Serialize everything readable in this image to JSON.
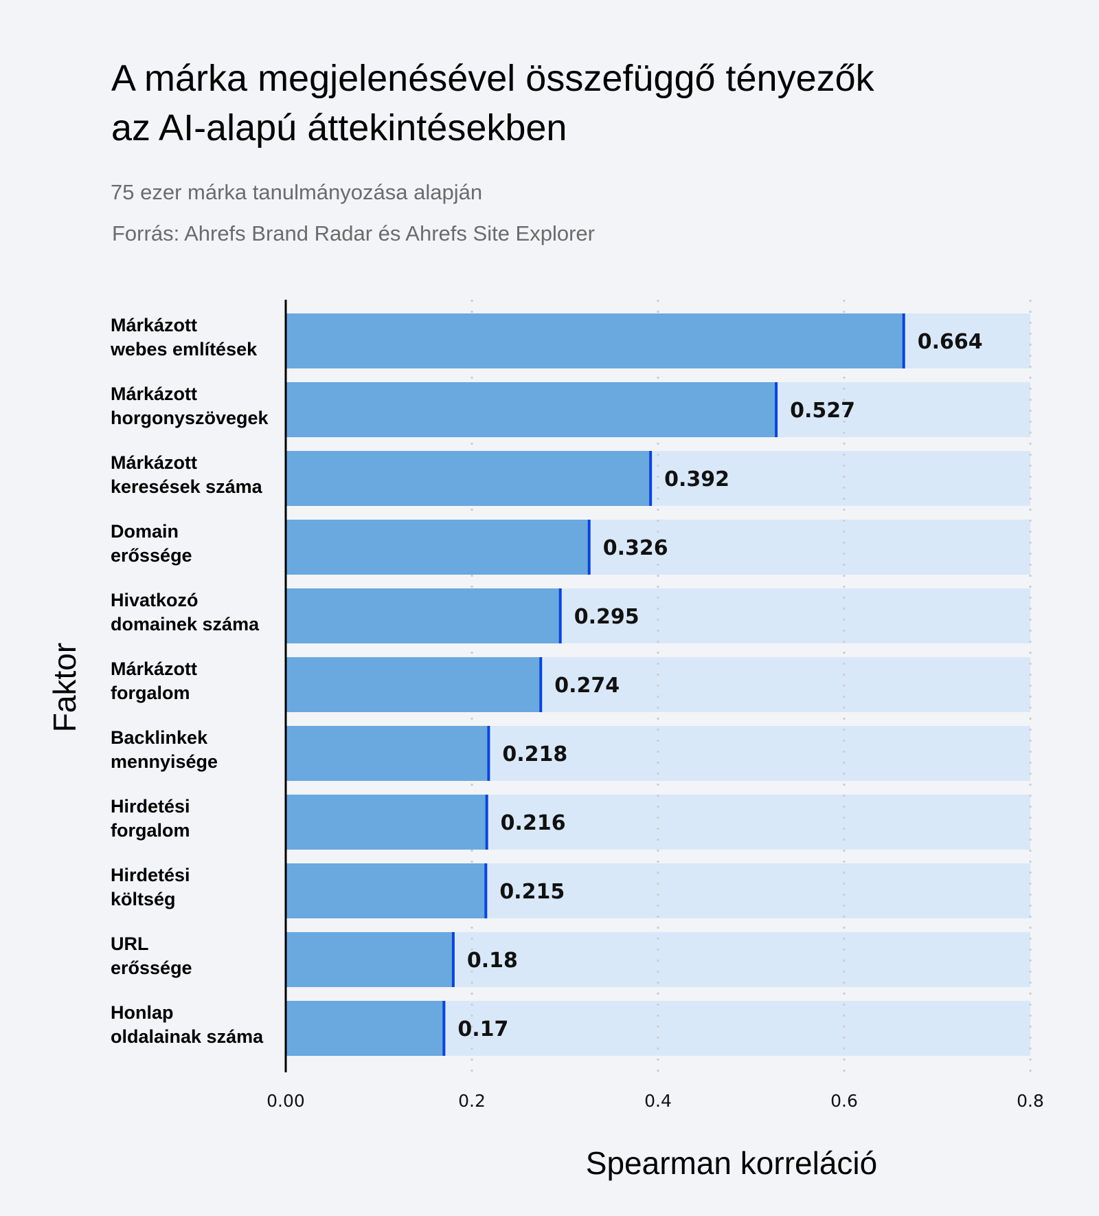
{
  "header": {
    "title_line1": "A márka megjelenésével összefüggő tényezők",
    "title_line2": "az AI-alapú áttekintésekben",
    "subtitle": "75 ezer márka tanulmányozása alapján",
    "source": "Forrás: Ahrefs Brand Radar és Ahrefs Site Explorer"
  },
  "colors": {
    "bar": "#6aa8e0",
    "bar_end": "#0b45d6",
    "band": "#d9e8f8",
    "background": "#f3f4f7",
    "grid": "#c9ced6"
  },
  "chart_data": {
    "type": "bar",
    "orientation": "horizontal",
    "title": "A márka megjelenésével összefüggő tényezők az AI-alapú áttekintésekben",
    "subtitle": "75 ezer márka tanulmányozása alapján",
    "xlabel": "Spearman korreláció",
    "ylabel": "Faktor",
    "xlim": [
      0,
      0.8
    ],
    "xticks": [
      "0.00",
      "0.2",
      "0.4",
      "0.6",
      "0.8"
    ],
    "xtick_values": [
      0,
      0.2,
      0.4,
      0.6,
      0.8
    ],
    "grid": "vertical dotted",
    "categories": [
      [
        "Márkázott",
        "webes említések"
      ],
      [
        "Márkázott",
        "horgonyszövegek"
      ],
      [
        "Márkázott",
        "keresések száma"
      ],
      [
        "Domain",
        "erőssége"
      ],
      [
        "Hivatkozó",
        "domainek száma"
      ],
      [
        "Márkázott",
        "forgalom"
      ],
      [
        "Backlinkek",
        "mennyisége"
      ],
      [
        "Hirdetési",
        "forgalom"
      ],
      [
        "Hirdetési",
        "költség"
      ],
      [
        "URL",
        "erőssége"
      ],
      [
        "Honlap",
        "oldalainak száma"
      ]
    ],
    "values": [
      0.664,
      0.527,
      0.392,
      0.326,
      0.295,
      0.274,
      0.218,
      0.216,
      0.215,
      0.18,
      0.17
    ],
    "value_labels": [
      "0.664",
      "0.527",
      "0.392",
      "0.326",
      "0.295",
      "0.274",
      "0.218",
      "0.216",
      "0.215",
      "0.18",
      "0.17"
    ]
  }
}
